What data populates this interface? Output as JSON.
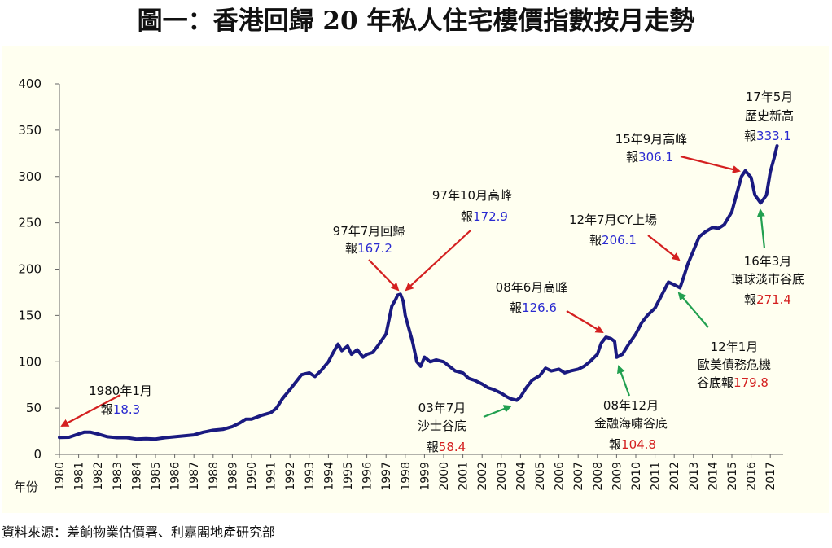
{
  "title": "圖一：香港回歸 20 年私人住宅樓價指數按月走勢",
  "source": "資料來源：差餉物業估價署、利嘉閣地產研究部",
  "colors": {
    "line": "#1a1a80",
    "red_arrow": "#d42020",
    "green_arrow": "#22a050",
    "blue_value": "#2a2ad0",
    "red_value": "#d42020",
    "plot_bg": "#fffff0"
  },
  "chart_data": {
    "type": "line",
    "xlabel": "年份",
    "ylabel": "",
    "ylim": [
      0,
      400
    ],
    "yticks": [
      0,
      50,
      100,
      150,
      200,
      250,
      300,
      350,
      400
    ],
    "xticks": [
      "1980",
      "1981",
      "1982",
      "1983",
      "1984",
      "1985",
      "1986",
      "1987",
      "1988",
      "1989",
      "1990",
      "1991",
      "1992",
      "1993",
      "1994",
      "1995",
      "1996",
      "1997",
      "1998",
      "1999",
      "2000",
      "2001",
      "2002",
      "2003",
      "2004",
      "2005",
      "2006",
      "2007",
      "2008",
      "2009",
      "2010",
      "2011",
      "2012",
      "2013",
      "2014",
      "2015",
      "2016",
      "2017"
    ],
    "grid": false,
    "legend": "none",
    "series": [
      {
        "x": [
          1980.0,
          1980.5,
          1981.0,
          1981.3,
          1981.6,
          1982.0,
          1982.5,
          1983.0,
          1983.5,
          1984.0,
          1984.5,
          1985.0,
          1985.5,
          1986.0,
          1986.5,
          1987.0,
          1987.5,
          1988.0,
          1988.5,
          1989.0,
          1989.4,
          1989.7,
          1990.0,
          1990.5,
          1991.0,
          1991.3,
          1991.6,
          1992.0,
          1992.3,
          1992.6,
          1993.0,
          1993.3,
          1993.6,
          1994.0,
          1994.2,
          1994.5,
          1994.7,
          1995.0,
          1995.2,
          1995.5,
          1995.8,
          1996.0,
          1996.3,
          1996.6,
          1997.0,
          1997.3,
          1997.5,
          1997.6,
          1997.75,
          1997.9,
          1998.0,
          1998.2,
          1998.4,
          1998.6,
          1998.8,
          1999.0,
          1999.3,
          1999.6,
          2000.0,
          2000.3,
          2000.6,
          2001.0,
          2001.3,
          2001.6,
          2002.0,
          2002.3,
          2002.6,
          2003.0,
          2003.3,
          2003.5,
          2003.8,
          2004.0,
          2004.3,
          2004.6,
          2005.0,
          2005.3,
          2005.6,
          2006.0,
          2006.3,
          2006.6,
          2007.0,
          2007.3,
          2007.6,
          2008.0,
          2008.2,
          2008.45,
          2008.7,
          2008.9,
          2009.0,
          2009.3,
          2009.6,
          2010.0,
          2010.3,
          2010.6,
          2011.0,
          2011.3,
          2011.5,
          2011.7,
          2012.0,
          2012.3,
          2012.5,
          2012.7,
          2013.0,
          2013.3,
          2013.6,
          2014.0,
          2014.3,
          2014.6,
          2015.0,
          2015.3,
          2015.5,
          2015.7,
          2016.0,
          2016.2,
          2016.5,
          2016.8,
          2017.0,
          2017.2,
          2017.35
        ],
        "values": [
          18.3,
          18.5,
          22,
          24,
          24,
          22,
          19,
          18,
          18,
          16.5,
          17,
          16.5,
          18,
          19,
          20,
          21,
          24,
          26,
          27,
          30,
          34,
          38,
          38,
          42,
          45,
          50,
          60,
          70,
          78,
          86,
          88,
          84,
          90,
          100,
          108,
          119,
          112,
          117,
          108,
          113,
          105,
          108,
          110,
          118,
          130,
          160,
          167.2,
          172,
          172.9,
          165,
          150,
          135,
          120,
          100,
          95,
          105,
          100,
          102,
          100,
          95,
          90,
          88,
          82,
          80,
          76,
          72,
          70,
          66,
          62,
          60,
          58.4,
          62,
          72,
          80,
          85,
          93,
          90,
          92,
          88,
          90,
          92,
          95,
          100,
          108,
          120,
          126.6,
          125,
          122,
          104.8,
          108,
          118,
          130,
          142,
          150,
          158,
          170,
          178,
          186,
          183,
          179.8,
          192,
          205,
          220,
          235,
          240,
          245,
          244,
          248,
          262,
          285,
          300,
          306.1,
          299,
          280,
          271.4,
          280,
          305,
          320,
          333.1
        ]
      }
    ],
    "annotations": [
      {
        "label": "1980年1月",
        "prefix": "報",
        "value": "18.3",
        "value_color": "blue",
        "arrow": "red"
      },
      {
        "label": "97年7月回歸",
        "prefix": "報",
        "value": "167.2",
        "value_color": "blue",
        "arrow": "red"
      },
      {
        "label": "97年10月高峰",
        "prefix": "報",
        "value": "172.9",
        "value_color": "blue",
        "arrow": "red"
      },
      {
        "label": "03年7月",
        "label2": "沙士谷底",
        "prefix": "報",
        "value": "58.4",
        "value_color": "red",
        "arrow": "green"
      },
      {
        "label": "08年6月高峰",
        "prefix": "報",
        "value": "126.6",
        "value_color": "blue",
        "arrow": "red"
      },
      {
        "label": "08年12月",
        "label2": "金融海嘯谷底",
        "prefix": "報",
        "value": "104.8",
        "value_color": "red",
        "arrow": "green"
      },
      {
        "label": "12年1月",
        "label2": "歐美債務危機",
        "prefix": "谷底報",
        "value": "179.8",
        "value_color": "red",
        "arrow": "green"
      },
      {
        "label": "12年7月CY上場",
        "prefix": "報",
        "value": "206.1",
        "value_color": "blue",
        "arrow": "red"
      },
      {
        "label": "15年9月高峰",
        "prefix": "報",
        "value": "306.1",
        "value_color": "blue",
        "arrow": "red"
      },
      {
        "label": "16年3月",
        "label2": "環球淡市谷底",
        "prefix": "報",
        "value": "271.4",
        "value_color": "red",
        "arrow": "green"
      },
      {
        "label": "17年5月",
        "label2": "歷史新高",
        "prefix": "報",
        "value": "333.1",
        "value_color": "blue",
        "arrow": "none"
      }
    ]
  }
}
